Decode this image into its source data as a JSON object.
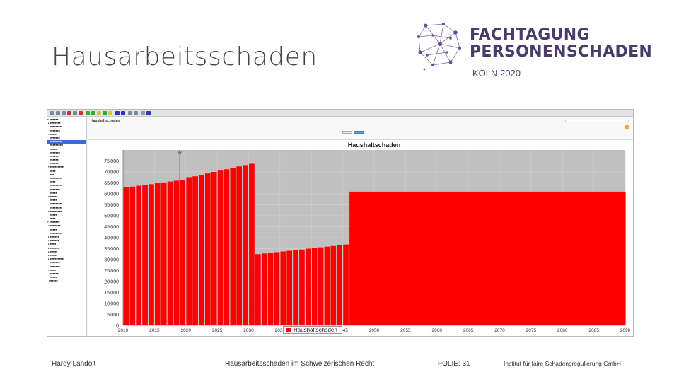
{
  "slide": {
    "title": "Hausarbeitsschaden",
    "logo": {
      "line1": "FACHTAGUNG",
      "line2": "PERSONENSCHADEN",
      "event": "KÖLN 2020"
    },
    "footer": {
      "author": "Hardy Landolt",
      "subject": "Hausarbeitsschaden im Schweizerischen Recht",
      "slide_number": "FOLIE: 31",
      "institute": "Institut für faire Schadensregulierung GmbH"
    }
  },
  "app": {
    "page_heading": "Haushaltschaden",
    "legend_label": "Haushaltschaden"
  },
  "colors": {
    "bar": "#ff0000",
    "plot_background": "#c0c0c0",
    "logo": "#4a3b6b"
  },
  "chart_data": {
    "type": "bar",
    "title": "Haushaltschaden",
    "xlabel": "",
    "ylabel": "",
    "ylim": [
      0,
      80000
    ],
    "yticks": [
      "0",
      "5'000",
      "10'000",
      "15'000",
      "20'000",
      "25'000",
      "30'000",
      "35'000",
      "40'000",
      "45'000",
      "50'000",
      "55'000",
      "60'000",
      "65'000",
      "70'000",
      "75'000"
    ],
    "xticks": [
      "2010",
      "2015",
      "2020",
      "2025",
      "2030",
      "2035",
      "2040",
      "2045",
      "2050",
      "2055",
      "2060",
      "2065",
      "2070",
      "2075",
      "2080",
      "2085",
      "2090"
    ],
    "marker_label": "BY",
    "marker_year": 2019,
    "grid": true,
    "legend": "bottom-center",
    "series": [
      {
        "name": "Haushaltschaden",
        "x": [
          2010,
          2011,
          2012,
          2013,
          2014,
          2015,
          2016,
          2017,
          2018,
          2019,
          2020,
          2021,
          2022,
          2023,
          2024,
          2025,
          2026,
          2027,
          2028,
          2029,
          2030,
          2031,
          2032,
          2033,
          2034,
          2035,
          2036,
          2037,
          2038,
          2039,
          2040,
          2041,
          2042,
          2043,
          2044,
          2045,
          2046
        ],
        "values": [
          63000,
          63300,
          63700,
          64000,
          64400,
          64800,
          65200,
          65600,
          66000,
          66400,
          67600,
          68000,
          68600,
          69300,
          70000,
          70600,
          71200,
          71900,
          72500,
          73100,
          73700,
          32500,
          32800,
          33100,
          33400,
          33700,
          34000,
          34300,
          34600,
          35000,
          35300,
          35600,
          35900,
          36200,
          36500,
          36900,
          61000
        ],
        "plateau": {
          "from": 2046,
          "to": 2090,
          "value": 61000
        }
      }
    ]
  }
}
